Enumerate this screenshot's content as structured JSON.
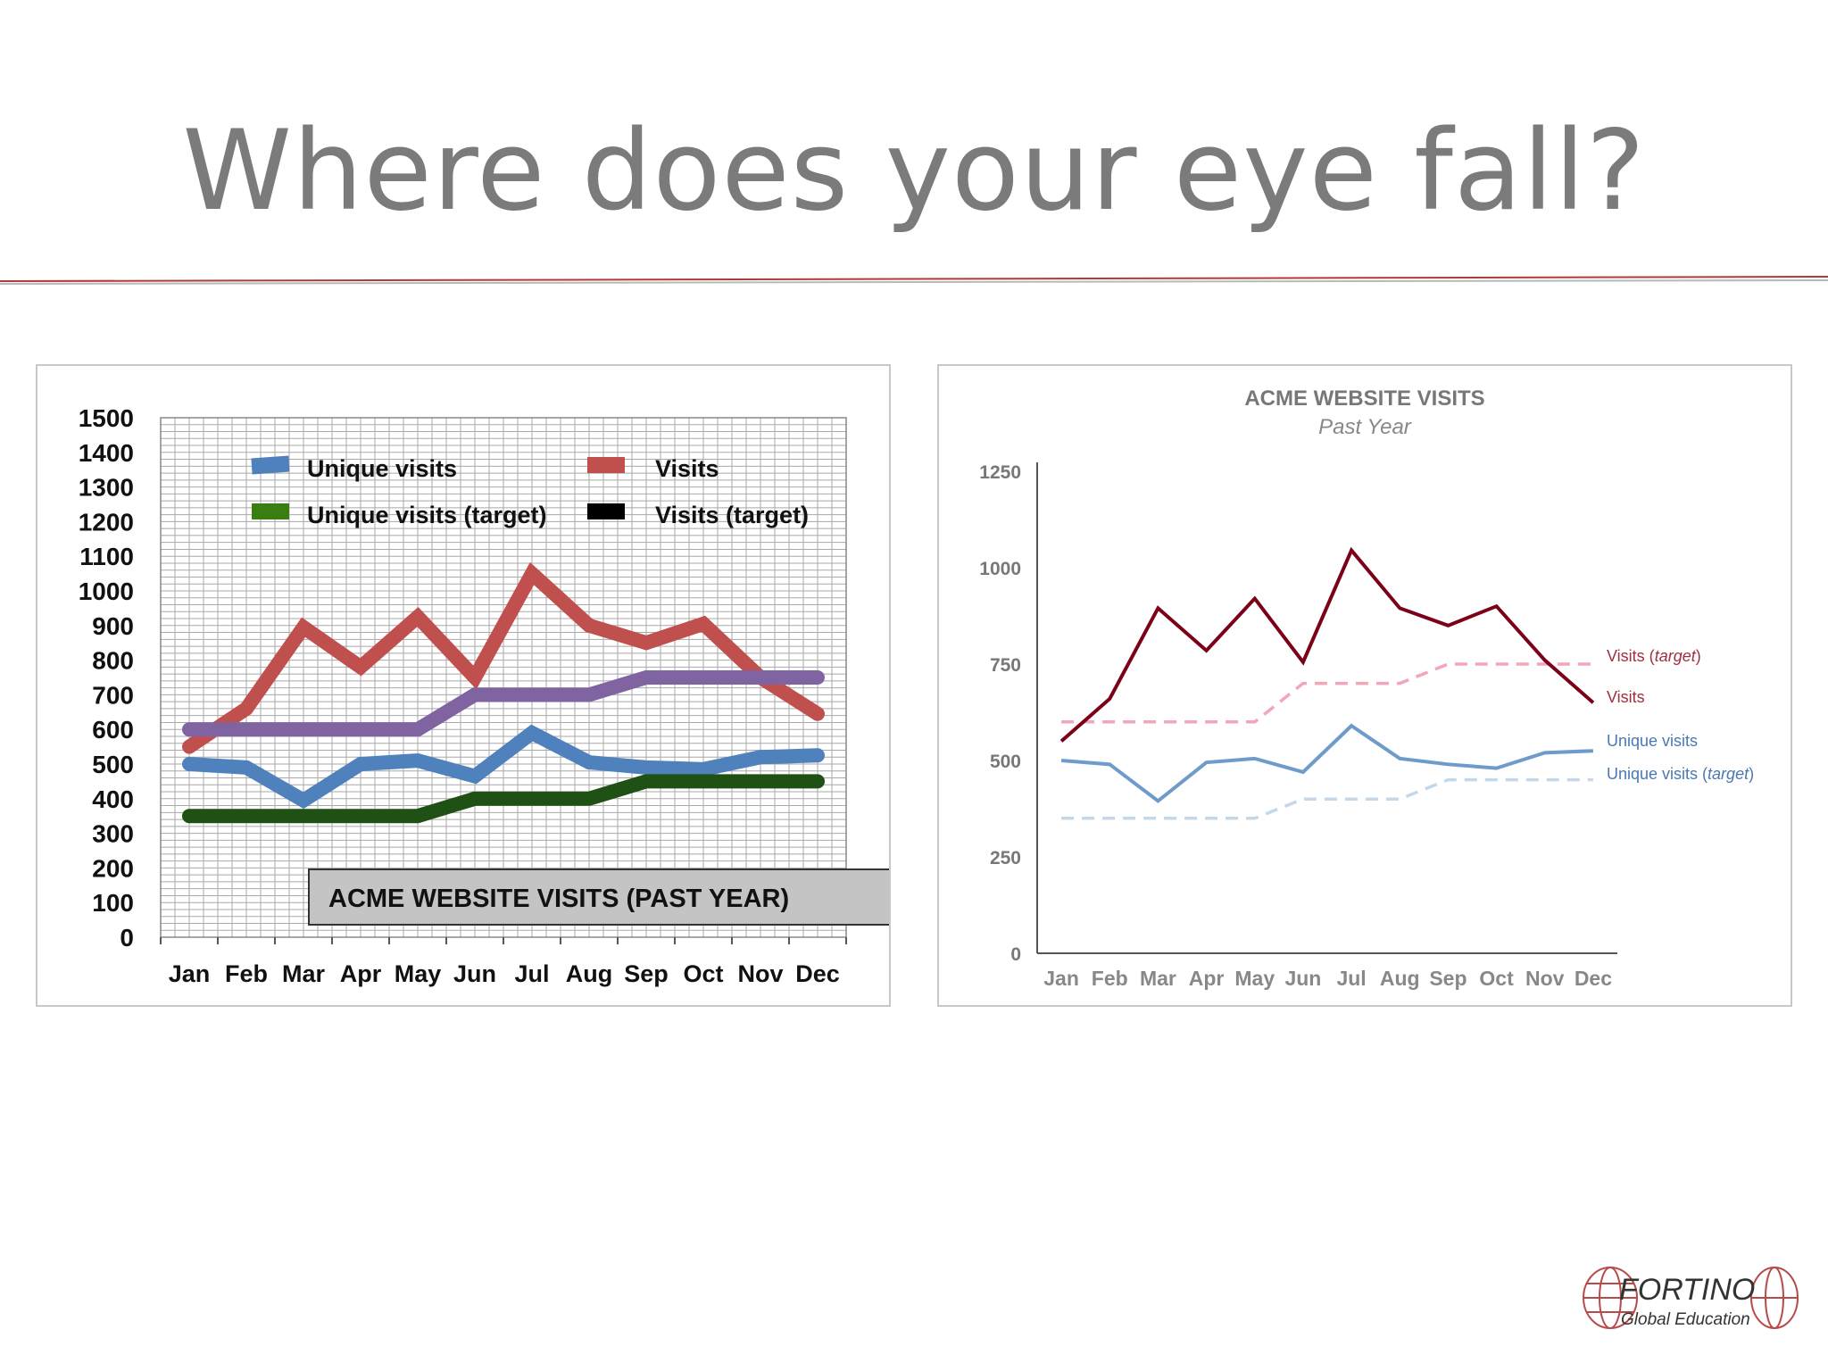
{
  "slide": {
    "title": "Where does your eye fall?"
  },
  "logo": {
    "name": "FORTINO",
    "tagline": "Global Education",
    "icon": "globe-icon"
  },
  "chart_data": [
    {
      "type": "line",
      "title": "ACME WEBSITE VISITS (PAST YEAR)",
      "categories": [
        "Jan",
        "Feb",
        "Mar",
        "Apr",
        "May",
        "Jun",
        "Jul",
        "Aug",
        "Sep",
        "Oct",
        "Nov",
        "Dec"
      ],
      "ylim": [
        0,
        1500
      ],
      "yticks": [
        0,
        100,
        200,
        300,
        400,
        500,
        600,
        700,
        800,
        900,
        1000,
        1100,
        1200,
        1300,
        1400,
        1500
      ],
      "grid": true,
      "legend_position": "top",
      "legend": [
        {
          "label": "Unique visits",
          "color": "#4f81bd"
        },
        {
          "label": "Visits",
          "color": "#c0504d"
        },
        {
          "label": "Unique visits (target)",
          "color": "#3a7d10"
        },
        {
          "label": "Visits (target)",
          "color": "#000000"
        }
      ],
      "series": [
        {
          "name": "Visits",
          "color": "#c0504d",
          "values": [
            550,
            660,
            895,
            780,
            925,
            750,
            1050,
            900,
            850,
            905,
            750,
            645
          ]
        },
        {
          "name": "Visits (target)",
          "color": "#8064a2",
          "values": [
            600,
            600,
            600,
            600,
            600,
            700,
            700,
            700,
            750,
            750,
            750,
            750
          ]
        },
        {
          "name": "Unique visits",
          "color": "#4f81bd",
          "values": [
            500,
            490,
            395,
            500,
            510,
            465,
            590,
            505,
            490,
            485,
            520,
            525
          ]
        },
        {
          "name": "Unique visits (target)",
          "color": "#1f5014",
          "values": [
            350,
            350,
            350,
            350,
            350,
            400,
            400,
            400,
            450,
            450,
            450,
            450
          ]
        }
      ]
    },
    {
      "type": "line",
      "title": "ACME WEBSITE VISITS",
      "subtitle": "Past Year",
      "categories": [
        "Jan",
        "Feb",
        "Mar",
        "Apr",
        "May",
        "Jun",
        "Jul",
        "Aug",
        "Sep",
        "Oct",
        "Nov",
        "Dec"
      ],
      "ylim": [
        0,
        1250
      ],
      "yticks": [
        0,
        250,
        500,
        750,
        1000,
        1250
      ],
      "grid": false,
      "legend_position": "right",
      "series": [
        {
          "name": "Visits",
          "color": "#7b0018",
          "dashed": false,
          "values": [
            550,
            660,
            895,
            785,
            920,
            755,
            1045,
            895,
            850,
            900,
            760,
            650
          ]
        },
        {
          "name": "Visits (target)",
          "label_main": "Visits (",
          "label_italic": "target",
          "label_end": ")",
          "color": "#f2a6b8",
          "dashed": true,
          "values": [
            600,
            600,
            600,
            600,
            600,
            700,
            700,
            700,
            750,
            750,
            750,
            750
          ]
        },
        {
          "name": "Unique visits",
          "color": "#6f9bca",
          "dashed": false,
          "values": [
            500,
            490,
            395,
            495,
            505,
            470,
            590,
            505,
            490,
            480,
            520,
            525
          ]
        },
        {
          "name": "Unique visits (target)",
          "label_main": "Unique visits (",
          "label_italic": "target",
          "label_end": ")",
          "color": "#c5d8ea",
          "dashed": true,
          "values": [
            350,
            350,
            350,
            350,
            350,
            400,
            400,
            400,
            450,
            450,
            450,
            450
          ]
        }
      ]
    }
  ]
}
